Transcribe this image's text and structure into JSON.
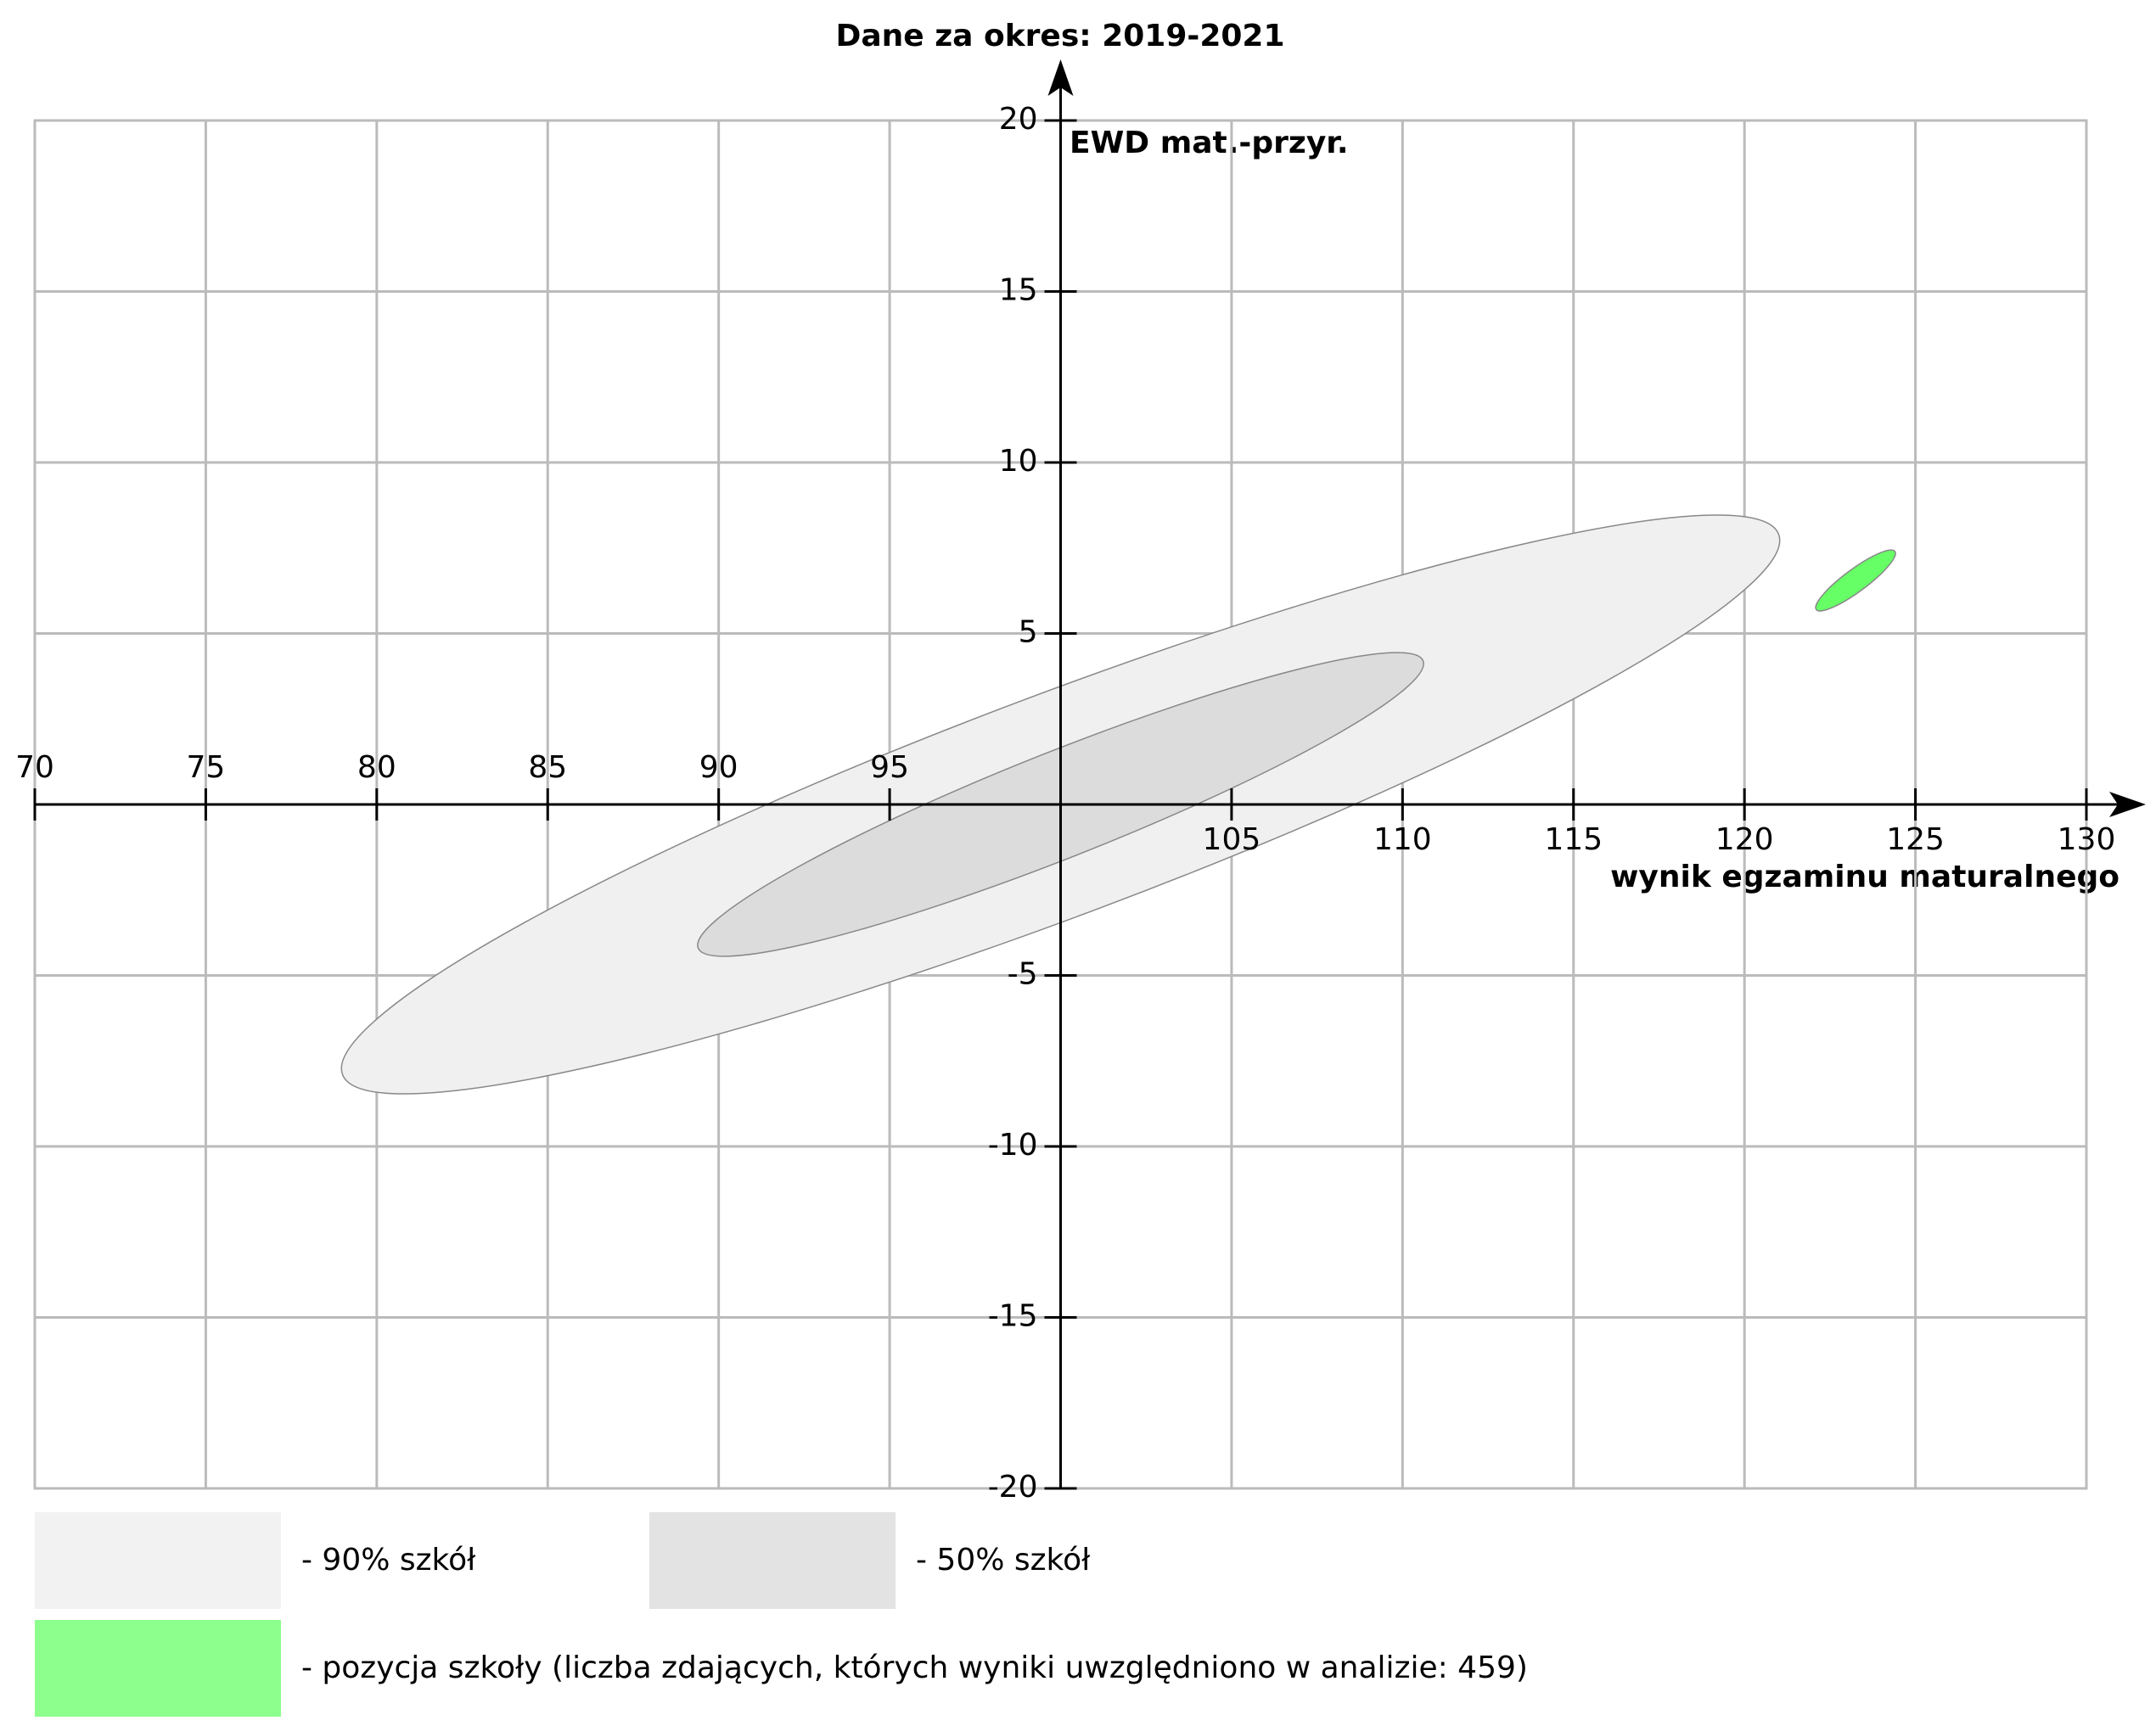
{
  "chart_data": {
    "type": "ellipse",
    "title": "Dane za okres: 2019-2021",
    "x_label": "wynik egzaminu maturalnego",
    "y_label": "EWD mat.-przyr.",
    "xlim": [
      70,
      130
    ],
    "ylim": [
      -20,
      20
    ],
    "xticks": [
      70,
      75,
      80,
      85,
      90,
      95,
      105,
      110,
      115,
      120,
      125,
      130
    ],
    "yticks": [
      20,
      15,
      10,
      5,
      -5,
      -10,
      -15,
      -20
    ],
    "axis_origin": [
      100,
      0
    ],
    "grid": true,
    "series": [
      {
        "name": "- 90% szkół",
        "color": "#f0f0f0",
        "legend_color": "#f2f2f2",
        "center": [
          100,
          0
        ],
        "major_end": [
          121,
          7.9
        ],
        "semi_minor": 3.24
      },
      {
        "name": "- 50% szkół",
        "color": "#dcdcdc",
        "legend_color": "#e3e3e3",
        "center": [
          100,
          0
        ],
        "major_end": [
          110.6,
          4.2
        ],
        "semi_minor": 1.55
      },
      {
        "name": "- pozycja szkoły (liczba zdających, których wyniki uwzględniono w analizie: 459)",
        "color": "#66ff66",
        "legend_color": "#8cff8c",
        "center": [
          123.25,
          6.55
        ],
        "major_end": [
          124.4,
          7.4
        ],
        "semi_minor": 0.33
      }
    ]
  }
}
